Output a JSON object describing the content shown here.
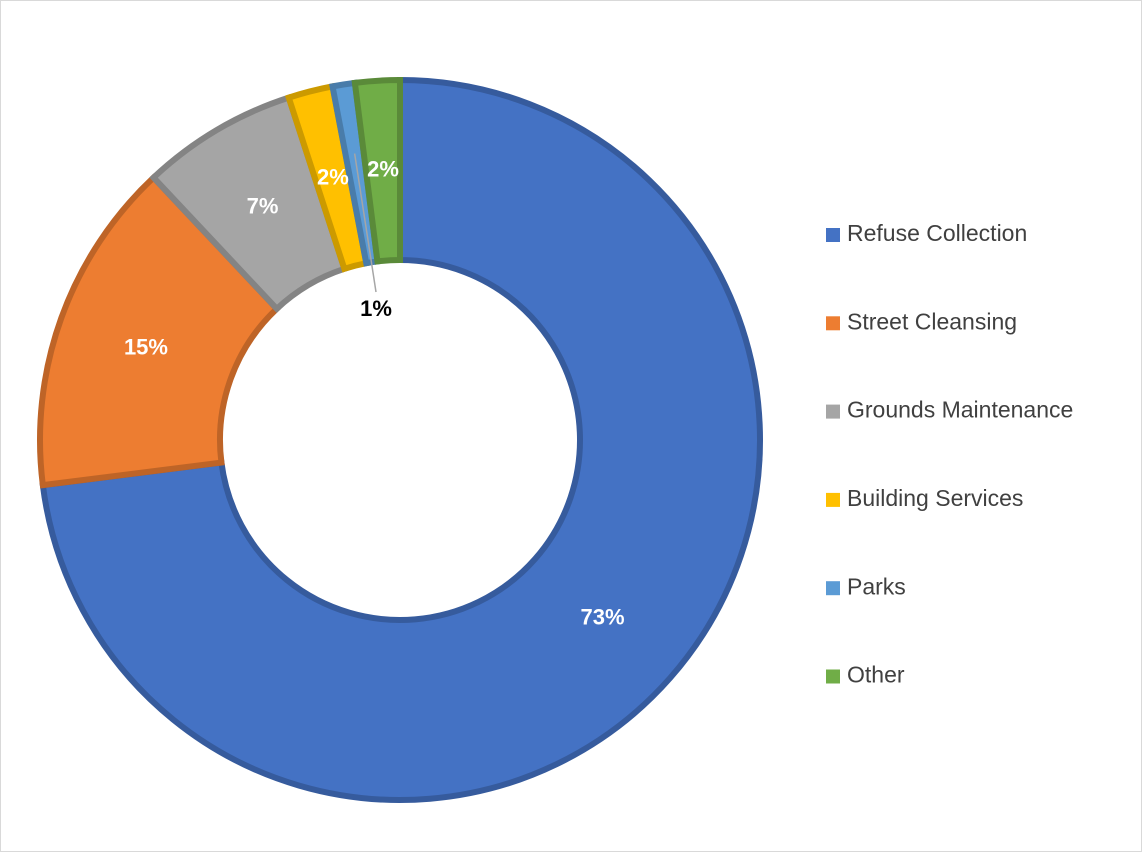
{
  "chart_data": {
    "type": "pie",
    "donut": true,
    "categories": [
      "Refuse Collection",
      "Street Cleansing",
      "Grounds Maintenance",
      "Building Services",
      "Parks",
      "Other"
    ],
    "values": [
      73,
      15,
      7,
      2,
      1,
      2
    ],
    "value_labels": [
      "73%",
      "15%",
      "7%",
      "2%",
      "1%",
      "2%"
    ],
    "colors": [
      "#4472c4",
      "#ed7d31",
      "#a5a5a5",
      "#ffc000",
      "#5b9bd5",
      "#70ad47"
    ],
    "legend": "right"
  }
}
